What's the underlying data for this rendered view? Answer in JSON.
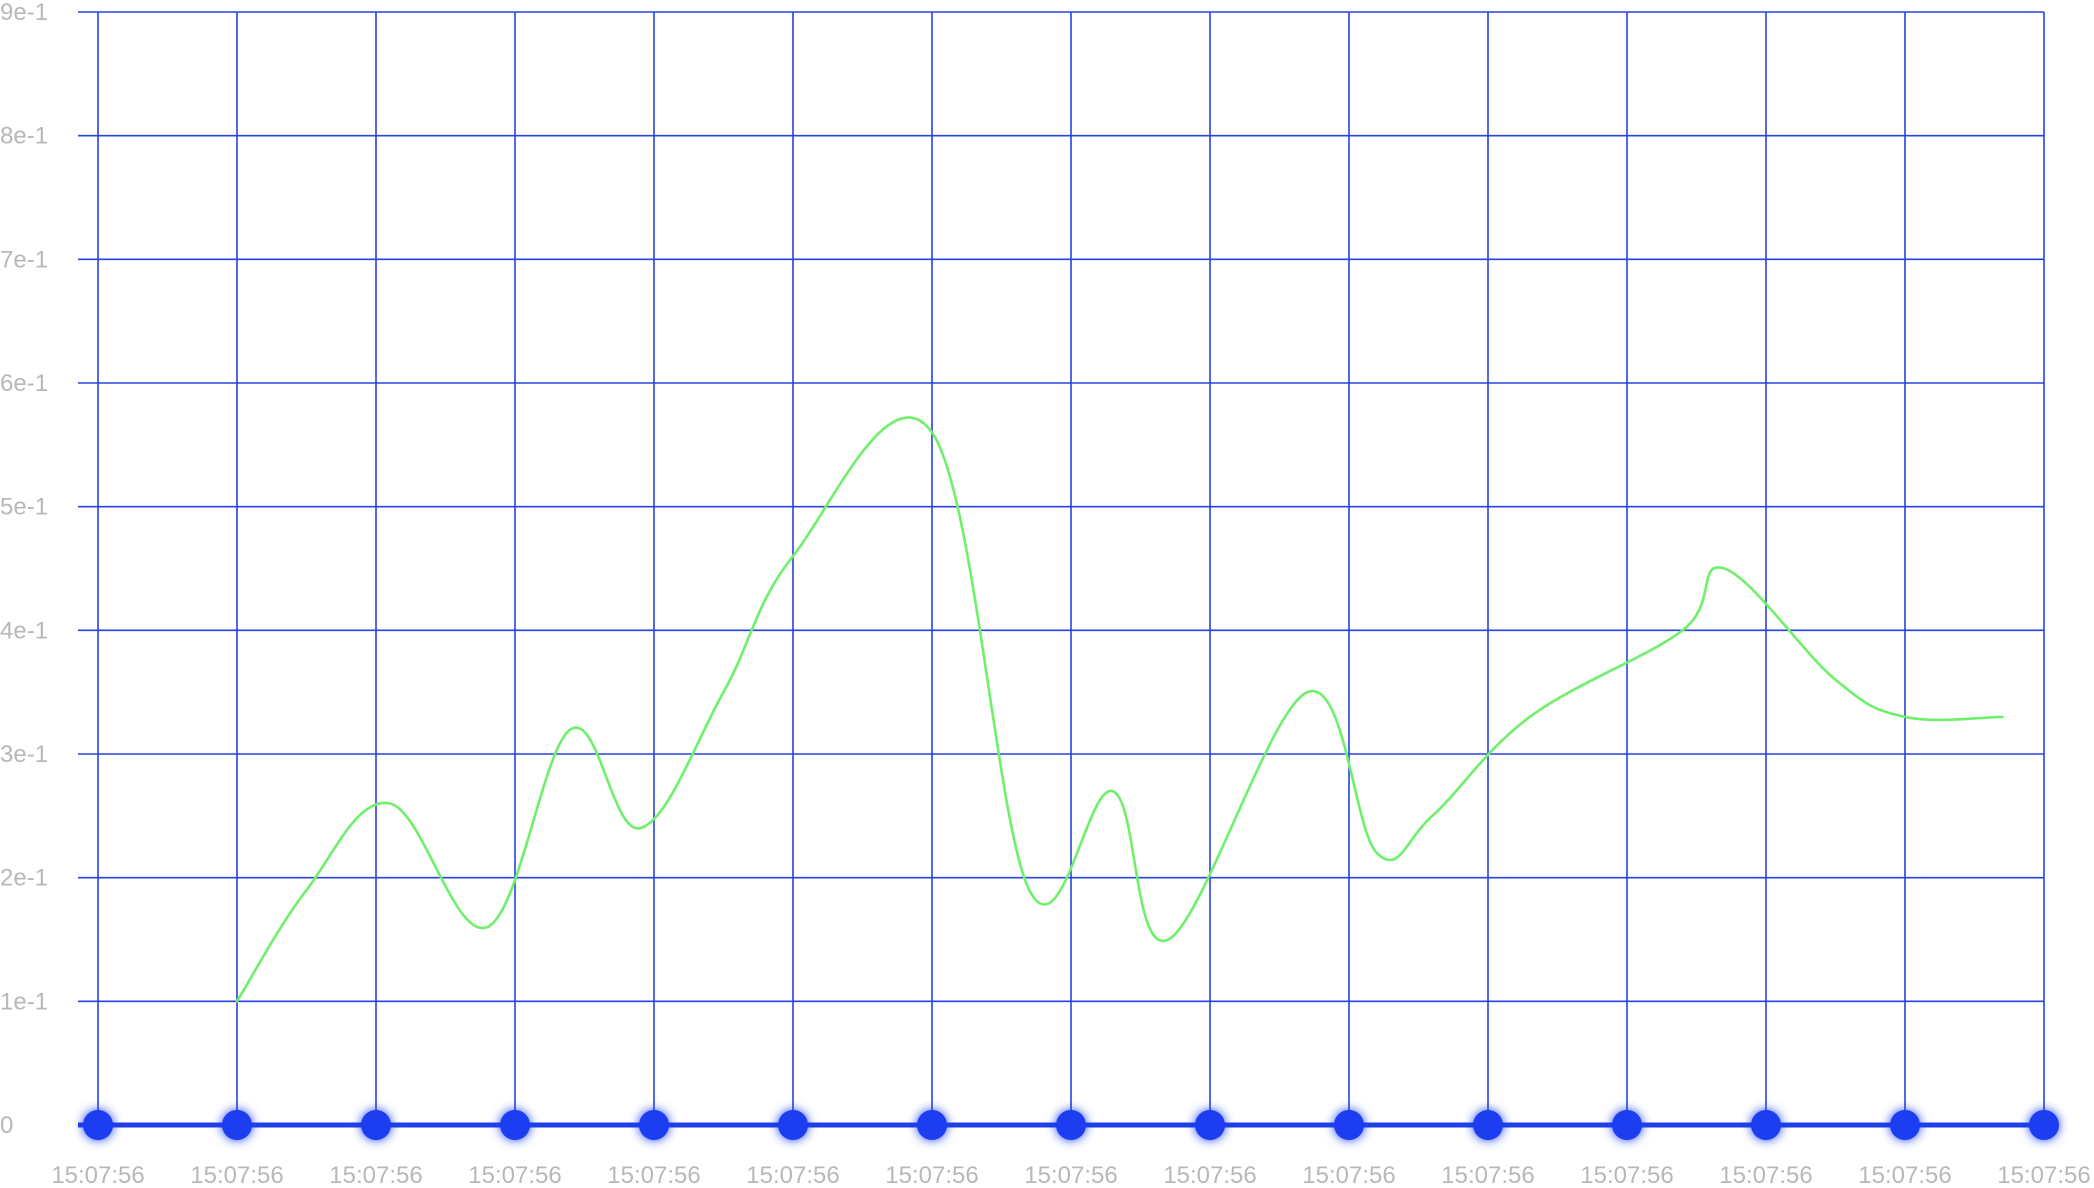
{
  "chart_data": {
    "type": "line",
    "title": "",
    "xlabel": "",
    "ylabel": "",
    "ylim": [
      0,
      0.9
    ],
    "y_ticks": [
      {
        "value": 0,
        "label": "0"
      },
      {
        "value": 0.1,
        "label": "1e-1"
      },
      {
        "value": 0.2,
        "label": "2e-1"
      },
      {
        "value": 0.3,
        "label": "3e-1"
      },
      {
        "value": 0.4,
        "label": "4e-1"
      },
      {
        "value": 0.5,
        "label": "5e-1"
      },
      {
        "value": 0.6,
        "label": "6e-1"
      },
      {
        "value": 0.7,
        "label": "7e-1"
      },
      {
        "value": 0.8,
        "label": "8e-1"
      },
      {
        "value": 0.9,
        "label": "9e-1"
      }
    ],
    "x_tick_labels": [
      "15:07:56",
      "15:07:56",
      "15:07:56",
      "15:07:56",
      "15:07:56",
      "15:07:56",
      "15:07:56",
      "15:07:56",
      "15:07:56",
      "15:07:56",
      "15:07:56",
      "15:07:56",
      "15:07:56",
      "15:07:56",
      "15:07:56"
    ],
    "grid": true,
    "legend": "none",
    "series": [
      {
        "color": "#6ff06b",
        "values": [
          0.1,
          0.19,
          0.26,
          0.16,
          0.32,
          0.24,
          0.35,
          0.46,
          0.56,
          0.19,
          0.27,
          0.15,
          0.35,
          0.22,
          0.25,
          0.33,
          0.4,
          0.45,
          0.36,
          0.33,
          0.33
        ],
        "x": [
          1,
          1.5,
          2.1,
          2.8,
          3.4,
          3.9,
          4.5,
          5.0,
          6.0,
          6.7,
          7.3,
          7.7,
          8.7,
          9.2,
          9.6,
          10.3,
          11.4,
          11.7,
          12.5,
          13.0,
          13.7
        ]
      }
    ],
    "colors": {
      "grid": "#2543e0",
      "baseline": "#1f3fe5",
      "dots": "#1d3cf0",
      "tick_text": "#b8b8b8",
      "series": "#6ff06b"
    }
  }
}
